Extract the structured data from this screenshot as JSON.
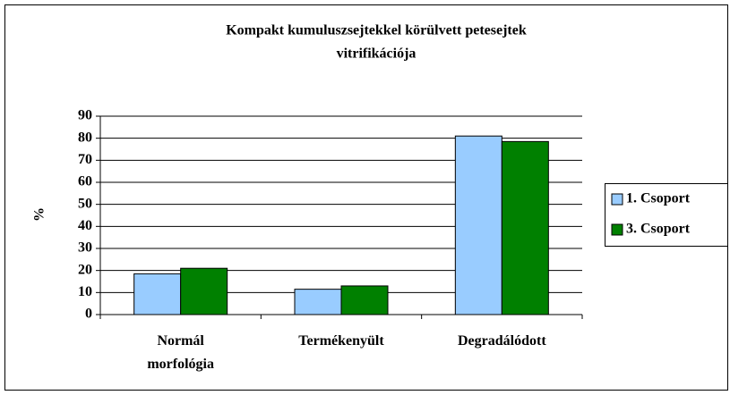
{
  "chart_data": {
    "type": "bar",
    "title": [
      "Kompakt kumuluszsejtekkel körülvett petesejtek",
      "vitrifikációja"
    ],
    "ylabel": "%",
    "categories": [
      "Normál morfológia",
      "Termékenyült",
      "Degradálódott"
    ],
    "series": [
      {
        "name": "1. Csoport",
        "color": "#99ccff",
        "values": [
          18.5,
          11.5,
          81
        ]
      },
      {
        "name": "3. Csoport",
        "color": "#008000",
        "values": [
          21,
          13,
          78.5
        ]
      }
    ],
    "ylim": [
      0,
      90
    ],
    "yticks": [
      0,
      10,
      20,
      30,
      40,
      50,
      60,
      70,
      80,
      90
    ],
    "grid": true,
    "legend": "right"
  }
}
